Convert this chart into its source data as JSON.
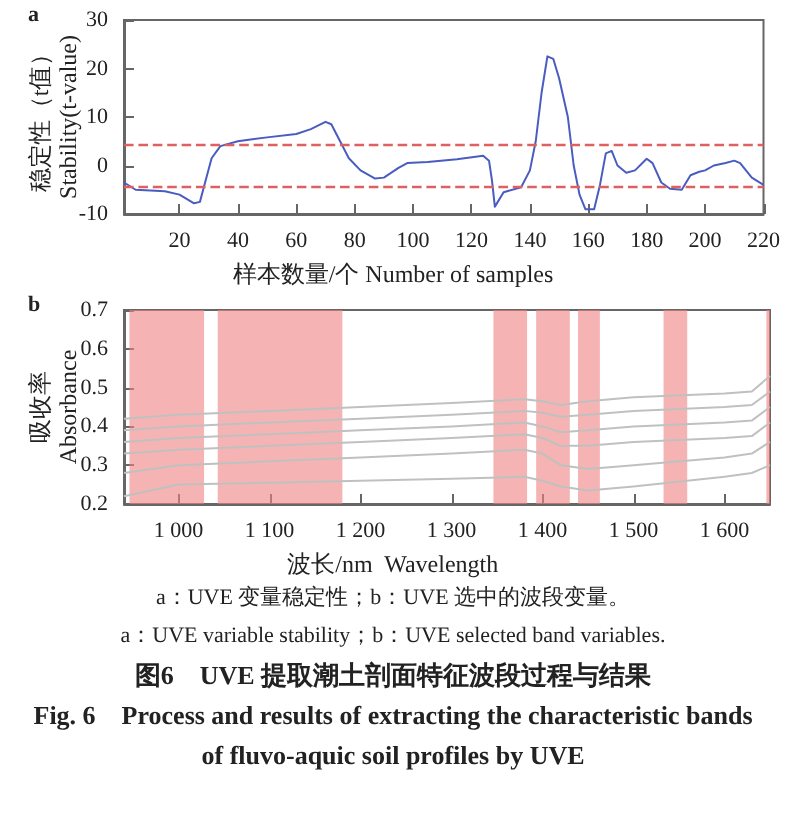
{
  "chart_data": [
    {
      "type": "line",
      "title": "a",
      "xlabel": "样本数量/个 Number of samples",
      "ylabel": "稳定性（t值）\nStability(t-value)",
      "xlim": [
        1,
        220
      ],
      "xticks": [
        20,
        40,
        60,
        80,
        100,
        120,
        140,
        160,
        180,
        200,
        220
      ],
      "ylim": [
        -10,
        30
      ],
      "yticks": [
        -10,
        0,
        10,
        20,
        30
      ],
      "grid": false,
      "marker": "none",
      "line_style": "solid",
      "series": [
        {
          "color": "#4a5cc0",
          "x": [
            1,
            5,
            15,
            20,
            25,
            27,
            29,
            31,
            34,
            40,
            50,
            60,
            65,
            70,
            72,
            75,
            78,
            82,
            87,
            90,
            95,
            98,
            105,
            115,
            124,
            126,
            127,
            128,
            129,
            131,
            137,
            140,
            142,
            144,
            146,
            148,
            150,
            153,
            155,
            157,
            159,
            162,
            164,
            166,
            168,
            170,
            173,
            176,
            180,
            182,
            185,
            188,
            192,
            195,
            198,
            200,
            203,
            207,
            210,
            212,
            216,
            220
          ],
          "values": [
            -3.5,
            -5,
            -5.3,
            -6,
            -7.8,
            -7.5,
            -3,
            1.5,
            4,
            5,
            5.8,
            6.5,
            7.5,
            9,
            8.5,
            5,
            1.5,
            -1,
            -2.7,
            -2.5,
            -0.5,
            0.5,
            0.7,
            1.3,
            2,
            1,
            -3,
            -8.5,
            -7.5,
            -5.5,
            -4.5,
            -1,
            5,
            15,
            22.5,
            22,
            18,
            10,
            0,
            -6,
            -9,
            -9,
            -4,
            2.5,
            3,
            0,
            -1.5,
            -1,
            1.4,
            0.5,
            -3.5,
            -4.8,
            -5,
            -2,
            -1.3,
            -1,
            0,
            0.5,
            1,
            0.5,
            -2.5,
            -4
          ]
        }
      ],
      "ref_lines": [
        {
          "axis": "y",
          "value": 4.5,
          "color": "#e06060",
          "line_style": "dashed"
        },
        {
          "axis": "y",
          "value": -4.5,
          "color": "#e06060",
          "line_style": "dashed"
        }
      ]
    },
    {
      "type": "line",
      "title": "b",
      "xlabel": "波长/nm  Wavelength",
      "ylabel": "吸收率\nAbsorbance",
      "xlim": [
        940,
        1650
      ],
      "xticks": [
        {
          "value": 1000,
          "label": "1 000"
        },
        {
          "value": 1100,
          "label": "1 100"
        },
        {
          "value": 1200,
          "label": "1 200"
        },
        {
          "value": 1300,
          "label": "1 300"
        },
        {
          "value": 1400,
          "label": "1 400"
        },
        {
          "value": 1500,
          "label": "1 500"
        },
        {
          "value": 1600,
          "label": "1 600"
        }
      ],
      "ylim": [
        0.2,
        0.7
      ],
      "yticks": [
        0.2,
        0.3,
        0.4,
        0.5,
        0.6,
        0.7
      ],
      "grid": false,
      "marker": "none",
      "line_style": "solid",
      "x": [
        940,
        1000,
        1100,
        1200,
        1300,
        1380,
        1400,
        1420,
        1450,
        1500,
        1600,
        1630,
        1650
      ],
      "series": [
        {
          "color": "#bfc1c1",
          "values": [
            0.42,
            0.43,
            0.44,
            0.45,
            0.46,
            0.47,
            0.465,
            0.455,
            0.465,
            0.475,
            0.485,
            0.49,
            0.53
          ]
        },
        {
          "color": "#bfc1c1",
          "values": [
            0.39,
            0.4,
            0.41,
            0.42,
            0.43,
            0.44,
            0.435,
            0.425,
            0.43,
            0.44,
            0.45,
            0.455,
            0.49
          ]
        },
        {
          "color": "#bfc1c1",
          "values": [
            0.36,
            0.37,
            0.38,
            0.39,
            0.4,
            0.41,
            0.4,
            0.385,
            0.39,
            0.4,
            0.41,
            0.415,
            0.45
          ]
        },
        {
          "color": "#bfc1c1",
          "values": [
            0.33,
            0.34,
            0.35,
            0.36,
            0.37,
            0.38,
            0.37,
            0.35,
            0.35,
            0.36,
            0.37,
            0.375,
            0.41
          ]
        },
        {
          "color": "#bfc1c1",
          "values": [
            0.28,
            0.3,
            0.31,
            0.32,
            0.33,
            0.34,
            0.33,
            0.3,
            0.29,
            0.3,
            0.32,
            0.33,
            0.36
          ]
        },
        {
          "color": "#bfc1c1",
          "values": [
            0.22,
            0.25,
            0.255,
            0.26,
            0.265,
            0.27,
            0.26,
            0.245,
            0.235,
            0.245,
            0.27,
            0.28,
            0.3
          ]
        }
      ],
      "bands": [
        {
          "axis": "x",
          "from": 946,
          "to": 1028,
          "color": "#f08080"
        },
        {
          "axis": "x",
          "from": 1043,
          "to": 1180,
          "color": "#f08080"
        },
        {
          "axis": "x",
          "from": 1346,
          "to": 1383,
          "color": "#f08080"
        },
        {
          "axis": "x",
          "from": 1393,
          "to": 1430,
          "color": "#f08080"
        },
        {
          "axis": "x",
          "from": 1439,
          "to": 1463,
          "color": "#f08080"
        },
        {
          "axis": "x",
          "from": 1533,
          "to": 1559,
          "color": "#f08080"
        },
        {
          "axis": "x",
          "from": 1646,
          "to": 1650,
          "color": "#f08080"
        }
      ],
      "annotations": [
        "a：UVE 变量稳定性；b：UVE 选中的波段变量。",
        "a：UVE variable stability；b：UVE selected band variables.",
        "图6　UVE 提取潮土剖面特征波段过程与结果",
        "Fig. 6　Process and results of extracting the characteristic bands of fluvo-aquic soil profiles by UVE"
      ]
    }
  ]
}
